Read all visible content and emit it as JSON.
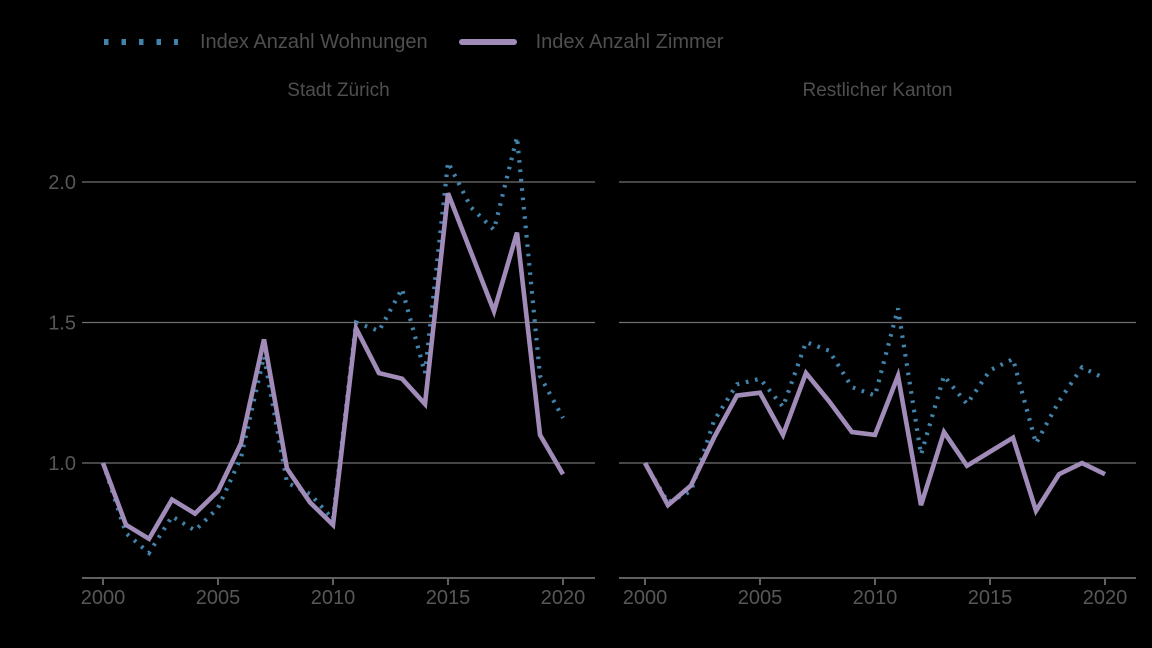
{
  "app": {
    "background": "#000000"
  },
  "colors": {
    "wohnungen": "#4183ab",
    "zimmer": "#a18cb9",
    "grid": "#6f6f6f",
    "axis": "#606060",
    "tick_text": "#575757",
    "label_text": "#4f4f4f"
  },
  "legend": {
    "items": [
      {
        "label": "Index Anzahl Wohnungen",
        "style": "dotted",
        "color": "#4183ab"
      },
      {
        "label": "Index Anzahl Zimmer",
        "style": "solid",
        "color": "#a18cb9"
      }
    ]
  },
  "chart_data": [
    {
      "type": "line",
      "title": "Stadt Zürich",
      "xlabel": "",
      "ylabel": "",
      "grid": "horizontal",
      "legend_position": "top",
      "x": [
        2000,
        2001,
        2002,
        2003,
        2004,
        2005,
        2006,
        2007,
        2008,
        2009,
        2010,
        2011,
        2012,
        2013,
        2014,
        2015,
        2016,
        2017,
        2018,
        2019,
        2020
      ],
      "xticks": [
        2000,
        2005,
        2010,
        2015,
        2020
      ],
      "yticks": [
        1.0,
        1.5,
        2.0
      ],
      "ytick_labels": [
        "1.0",
        "1.5",
        "2.0"
      ],
      "ylim": [
        0.59,
        2.19
      ],
      "series": [
        {
          "name": "Index Anzahl Wohnungen",
          "style": "dotted",
          "color": "#4183ab",
          "values": [
            1.0,
            0.75,
            0.68,
            0.81,
            0.76,
            0.84,
            1.02,
            1.38,
            0.93,
            0.89,
            0.8,
            1.5,
            1.47,
            1.62,
            1.32,
            2.07,
            1.91,
            1.83,
            2.16,
            1.31,
            1.16
          ]
        },
        {
          "name": "Index Anzahl Zimmer",
          "style": "solid",
          "color": "#a18cb9",
          "values": [
            1.0,
            0.78,
            0.73,
            0.87,
            0.82,
            0.9,
            1.07,
            1.44,
            0.98,
            0.86,
            0.78,
            1.48,
            1.32,
            1.3,
            1.21,
            1.96,
            1.75,
            1.54,
            1.82,
            1.1,
            0.96
          ]
        }
      ]
    },
    {
      "type": "line",
      "title": "Restlicher Kanton",
      "xlabel": "",
      "ylabel": "",
      "grid": "horizontal",
      "legend_position": "top",
      "x": [
        2000,
        2001,
        2002,
        2003,
        2004,
        2005,
        2006,
        2007,
        2008,
        2009,
        2010,
        2011,
        2012,
        2013,
        2014,
        2015,
        2016,
        2017,
        2018,
        2019,
        2020
      ],
      "xticks": [
        2000,
        2005,
        2010,
        2015,
        2020
      ],
      "yticks": [
        1.0,
        1.5,
        2.0
      ],
      "ytick_labels": [],
      "ylim": [
        0.59,
        2.19
      ],
      "series": [
        {
          "name": "Index Anzahl Wohnungen",
          "style": "dotted",
          "color": "#4183ab",
          "values": [
            1.0,
            0.86,
            0.9,
            1.15,
            1.28,
            1.3,
            1.2,
            1.43,
            1.4,
            1.27,
            1.24,
            1.55,
            1.03,
            1.31,
            1.21,
            1.33,
            1.37,
            1.07,
            1.22,
            1.34,
            1.3
          ]
        },
        {
          "name": "Index Anzahl Zimmer",
          "style": "solid",
          "color": "#a18cb9",
          "values": [
            1.0,
            0.85,
            0.92,
            1.09,
            1.24,
            1.25,
            1.1,
            1.32,
            1.22,
            1.11,
            1.1,
            1.31,
            0.85,
            1.11,
            0.99,
            1.04,
            1.09,
            0.83,
            0.96,
            1.0,
            0.96
          ]
        }
      ]
    }
  ]
}
